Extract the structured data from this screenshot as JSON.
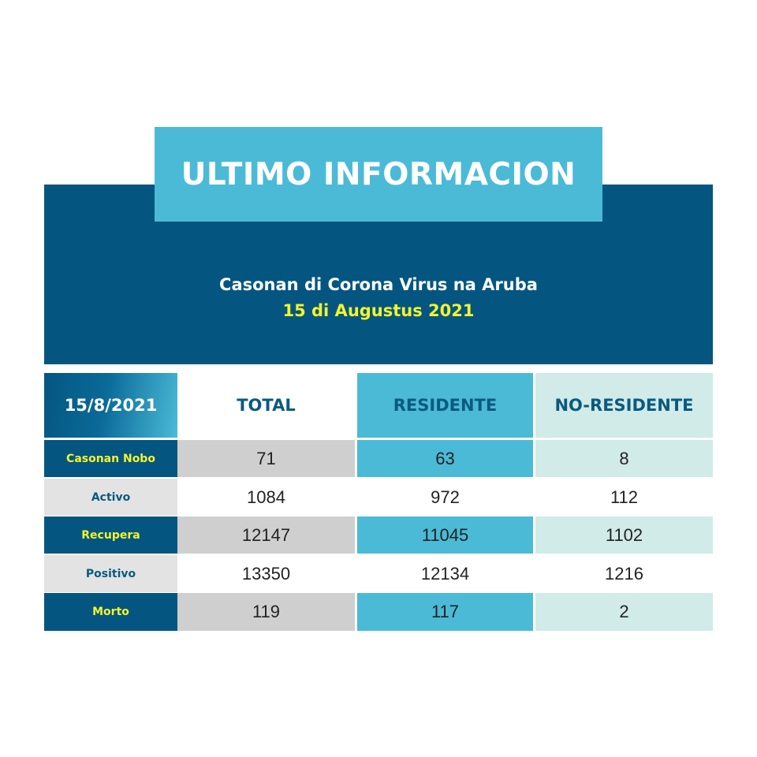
{
  "title": "ULTIMO INFORMACION",
  "subtitle": "Casonan di Corona Virus na Aruba",
  "date_line": "15 di Augustus 2021",
  "colors": {
    "dark_blue": "#045680",
    "light_blue": "#4bbad7",
    "pale_teal": "#d0ebe8",
    "gray": "#cfcfcf",
    "yellow": "#f4f32e"
  },
  "table": {
    "date": "15/8/2021",
    "columns": [
      "TOTAL",
      "RESIDENTE",
      "NO-RESIDENTE"
    ],
    "rows": [
      {
        "label": "Casonan Nobo",
        "values": [
          "71",
          "63",
          "8"
        ]
      },
      {
        "label": "Activo",
        "values": [
          "1084",
          "972",
          "112"
        ]
      },
      {
        "label": "Recupera",
        "values": [
          "12147",
          "11045",
          "1102"
        ]
      },
      {
        "label": "Positivo",
        "values": [
          "13350",
          "12134",
          "1216"
        ]
      },
      {
        "label": "Morto",
        "values": [
          "119",
          "117",
          "2"
        ]
      }
    ]
  }
}
